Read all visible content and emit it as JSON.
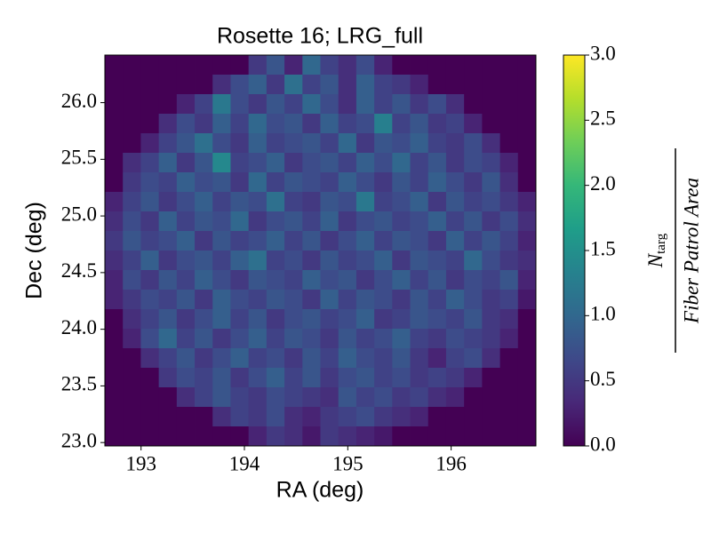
{
  "chart_data": {
    "type": "heatmap",
    "title": "Rosette 16; LRG_full",
    "x_label": "RA (deg)",
    "y_label": "Dec (deg)",
    "xlim": [
      192.65,
      196.82
    ],
    "ylim": [
      22.97,
      26.42
    ],
    "xticks": [
      193,
      194,
      195,
      196
    ],
    "yticks": [
      {
        "value": 23,
        "label": "23.0"
      },
      23.5,
      {
        "value": 24,
        "label": "24.0"
      },
      24.5,
      {
        "value": 25,
        "label": "25.0"
      },
      25.5,
      {
        "value": 26,
        "label": "26.0"
      }
    ],
    "clim": [
      0,
      3
    ],
    "cticks": [
      {
        "value": 0,
        "label": "0.0"
      },
      0.5,
      {
        "value": 1,
        "label": "1.0"
      },
      1.5,
      {
        "value": 2,
        "label": "2.0"
      },
      2.5,
      {
        "value": 3,
        "label": "3.0"
      }
    ],
    "colorbar_label": {
      "numerator": "N",
      "numerator_sub": "targ",
      "denominator": "Fiber Patrol Area"
    },
    "colormap": [
      "#440154",
      "#482878",
      "#3e4989",
      "#31688e",
      "#26828e",
      "#1f9e89",
      "#35b779",
      "#6ece58",
      "#b5de2b",
      "#fde725"
    ],
    "z": [
      [
        0,
        0,
        0,
        0,
        0,
        0,
        0,
        0,
        0.5,
        0.8,
        0.3,
        1.0,
        0.6,
        0.4,
        0.7,
        0.3,
        0,
        0,
        0,
        0,
        0,
        0,
        0,
        0
      ],
      [
        0,
        0,
        0,
        0,
        0,
        0,
        0.4,
        0.7,
        0.9,
        0.5,
        1.1,
        0.6,
        0.8,
        0.4,
        0.9,
        0.6,
        0.5,
        0.3,
        0,
        0,
        0,
        0,
        0,
        0
      ],
      [
        0,
        0,
        0,
        0,
        0.3,
        0.6,
        1.2,
        0.7,
        0.5,
        0.8,
        0.6,
        1.0,
        0.7,
        0.4,
        0.9,
        0.6,
        0.8,
        0.5,
        0.7,
        0.4,
        0,
        0,
        0,
        0
      ],
      [
        0,
        0,
        0,
        0.4,
        0.7,
        0.5,
        0.9,
        0.6,
        1.0,
        0.7,
        0.8,
        0.5,
        0.9,
        0.6,
        0.7,
        1.3,
        0.6,
        0.8,
        0.5,
        0.6,
        0.3,
        0,
        0,
        0
      ],
      [
        0,
        0,
        0.3,
        0.6,
        0.8,
        1.1,
        0.7,
        0.5,
        0.9,
        0.6,
        0.7,
        0.8,
        0.6,
        1.0,
        0.5,
        0.8,
        0.7,
        0.9,
        0.6,
        0.5,
        0.7,
        0.4,
        0,
        0
      ],
      [
        0,
        0.4,
        0.6,
        0.9,
        0.5,
        0.8,
        1.4,
        0.6,
        0.7,
        0.9,
        0.5,
        0.7,
        0.8,
        0.6,
        0.9,
        0.7,
        1.0,
        0.6,
        0.8,
        0.5,
        0.7,
        0.6,
        0.3,
        0
      ],
      [
        0,
        0.5,
        0.7,
        0.6,
        0.9,
        0.7,
        0.8,
        0.5,
        1.0,
        0.6,
        0.8,
        0.7,
        0.6,
        0.9,
        0.7,
        0.5,
        0.8,
        0.6,
        0.9,
        0.7,
        0.5,
        0.8,
        0.4,
        0
      ],
      [
        0.3,
        0.6,
        0.8,
        0.5,
        0.7,
        0.9,
        0.6,
        0.8,
        0.7,
        1.1,
        0.6,
        0.5,
        0.8,
        0.7,
        1.2,
        0.6,
        0.7,
        0.9,
        0.5,
        0.8,
        0.6,
        0.7,
        0.5,
        0.3
      ],
      [
        0.4,
        0.7,
        0.5,
        0.9,
        0.6,
        0.8,
        0.7,
        1.0,
        0.5,
        0.7,
        0.8,
        0.6,
        0.9,
        0.5,
        0.7,
        0.8,
        0.6,
        0.7,
        0.9,
        0.6,
        0.8,
        0.5,
        0.7,
        0.4
      ],
      [
        0.5,
        0.8,
        0.6,
        0.7,
        0.9,
        0.5,
        0.8,
        0.6,
        0.7,
        0.9,
        0.6,
        0.8,
        0.5,
        0.7,
        0.9,
        0.6,
        0.8,
        0.7,
        0.5,
        0.9,
        0.6,
        0.8,
        0.6,
        0.3
      ],
      [
        0.4,
        0.6,
        0.9,
        0.5,
        0.7,
        0.8,
        0.6,
        0.9,
        1.1,
        0.6,
        0.7,
        0.5,
        0.8,
        0.6,
        0.7,
        0.9,
        0.5,
        0.8,
        0.7,
        0.6,
        1.0,
        0.7,
        0.5,
        0.4
      ],
      [
        0.3,
        0.7,
        0.5,
        0.8,
        0.6,
        0.9,
        0.7,
        0.5,
        0.8,
        0.7,
        0.6,
        0.9,
        0.7,
        0.8,
        0.5,
        0.7,
        0.9,
        0.6,
        0.8,
        0.5,
        0.7,
        0.6,
        0.8,
        0.3
      ],
      [
        0.3,
        0.5,
        0.7,
        0.6,
        0.8,
        0.5,
        0.9,
        0.7,
        0.6,
        0.8,
        0.7,
        0.5,
        0.9,
        0.6,
        0.8,
        0.7,
        0.5,
        0.8,
        0.6,
        0.9,
        0.7,
        0.5,
        0.6,
        0.2
      ],
      [
        0,
        0.4,
        0.6,
        0.8,
        0.5,
        0.7,
        0.9,
        0.6,
        0.8,
        0.5,
        0.7,
        0.8,
        0.6,
        0.7,
        0.9,
        0.5,
        0.6,
        0.8,
        0.7,
        0.6,
        0.8,
        0.5,
        0.4,
        0
      ],
      [
        0,
        0.3,
        0.7,
        1.0,
        0.6,
        0.8,
        0.5,
        0.7,
        0.9,
        0.6,
        0.8,
        0.7,
        0.5,
        0.8,
        0.6,
        0.7,
        0.9,
        0.6,
        0.5,
        0.7,
        0.6,
        0.5,
        0.3,
        0
      ],
      [
        0,
        0,
        0.4,
        0.6,
        0.8,
        0.5,
        0.7,
        0.9,
        0.6,
        0.7,
        0.5,
        0.8,
        0.6,
        0.9,
        0.7,
        0.6,
        0.8,
        0.5,
        0.3,
        0.6,
        0.7,
        0.4,
        0,
        0
      ],
      [
        0,
        0,
        0,
        0.5,
        0.7,
        0.6,
        0.8,
        0.5,
        0.7,
        0.9,
        0.6,
        0.8,
        0.5,
        0.7,
        0.8,
        0.6,
        0.7,
        0.5,
        0.6,
        0.5,
        0.3,
        0,
        0,
        0
      ],
      [
        0,
        0,
        0,
        0,
        0.4,
        0.6,
        0.8,
        0.6,
        0.5,
        0.7,
        0.6,
        0.5,
        0.4,
        0.8,
        0.6,
        0.7,
        0.5,
        0.6,
        0.4,
        0.3,
        0,
        0,
        0,
        0
      ],
      [
        0,
        0,
        0,
        0,
        0,
        0,
        0.4,
        0.6,
        0.5,
        0.7,
        0.4,
        0.3,
        0.5,
        0.6,
        0.7,
        0.5,
        0.4,
        0.3,
        0,
        0,
        0,
        0,
        0,
        0
      ],
      [
        0,
        0,
        0,
        0,
        0,
        0,
        0,
        0,
        0.3,
        0.5,
        0.4,
        0.2,
        0.5,
        0.4,
        0.3,
        0.2,
        0,
        0,
        0,
        0,
        0,
        0,
        0,
        0
      ]
    ]
  }
}
